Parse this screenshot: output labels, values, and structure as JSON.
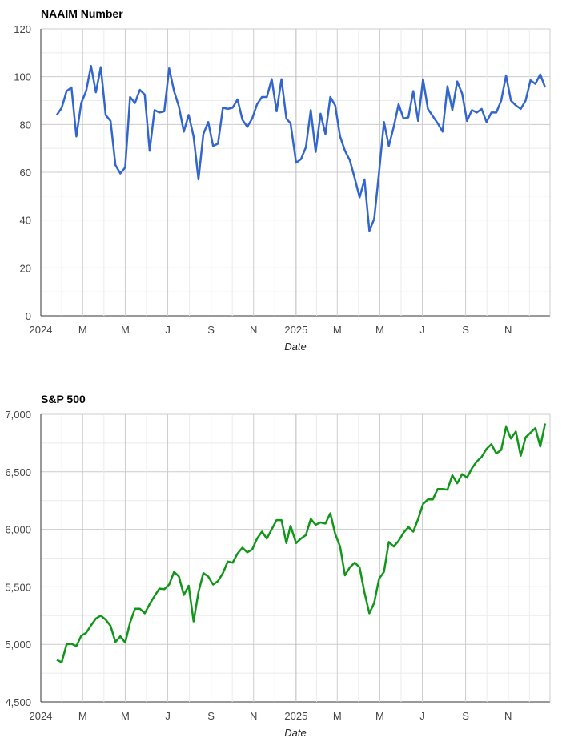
{
  "chart_data": [
    {
      "type": "line",
      "title": "NAAIM Number",
      "xlabel": "Date",
      "ylabel": "",
      "ylim": [
        0,
        120
      ],
      "yticks": [
        0,
        20,
        40,
        60,
        80,
        100,
        120
      ],
      "xlim": [
        "2024-01-01",
        "2025-12-31"
      ],
      "xticks": [
        {
          "label": "2024",
          "date": "2024-01-01"
        },
        {
          "label": "M",
          "date": "2024-03-01"
        },
        {
          "label": "M",
          "date": "2024-05-01"
        },
        {
          "label": "J",
          "date": "2024-07-01"
        },
        {
          "label": "S",
          "date": "2024-09-01"
        },
        {
          "label": "N",
          "date": "2024-11-01"
        },
        {
          "label": "2025",
          "date": "2025-01-01"
        },
        {
          "label": "M",
          "date": "2025-03-01"
        },
        {
          "label": "M",
          "date": "2025-05-01"
        },
        {
          "label": "J",
          "date": "2025-07-01"
        },
        {
          "label": "S",
          "date": "2025-09-01"
        },
        {
          "label": "N",
          "date": "2025-11-01"
        }
      ],
      "grid": true,
      "color": "#3366cc",
      "series": [
        {
          "x": [
            "2024-01-24",
            "2024-01-31",
            "2024-02-07",
            "2024-02-14",
            "2024-02-21",
            "2024-02-28",
            "2024-03-06",
            "2024-03-13",
            "2024-03-20",
            "2024-03-27",
            "2024-04-03",
            "2024-04-10",
            "2024-04-17",
            "2024-04-24",
            "2024-05-01",
            "2024-05-08",
            "2024-05-15",
            "2024-05-22",
            "2024-05-29",
            "2024-06-05",
            "2024-06-12",
            "2024-06-19",
            "2024-06-26",
            "2024-07-03",
            "2024-07-10",
            "2024-07-17",
            "2024-07-24",
            "2024-07-31",
            "2024-08-07",
            "2024-08-14",
            "2024-08-21",
            "2024-08-28",
            "2024-09-04",
            "2024-09-11",
            "2024-09-18",
            "2024-09-25",
            "2024-10-02",
            "2024-10-09",
            "2024-10-16",
            "2024-10-23",
            "2024-10-30",
            "2024-11-06",
            "2024-11-13",
            "2024-11-20",
            "2024-11-27",
            "2024-12-04",
            "2024-12-11",
            "2024-12-18",
            "2024-12-24",
            "2025-01-01",
            "2025-01-08",
            "2025-01-15",
            "2025-01-22",
            "2025-01-29",
            "2025-02-05",
            "2025-02-12",
            "2025-02-19",
            "2025-02-26",
            "2025-03-05",
            "2025-03-12",
            "2025-03-19",
            "2025-03-26",
            "2025-04-02",
            "2025-04-09",
            "2025-04-16",
            "2025-04-23",
            "2025-04-30",
            "2025-05-07",
            "2025-05-14",
            "2025-05-21",
            "2025-05-28",
            "2025-06-04",
            "2025-06-11",
            "2025-06-18",
            "2025-06-25",
            "2025-07-02",
            "2025-07-09",
            "2025-07-16",
            "2025-07-23",
            "2025-07-30",
            "2025-08-06",
            "2025-08-13",
            "2025-08-20",
            "2025-08-27",
            "2025-09-03",
            "2025-09-10",
            "2025-09-17",
            "2025-09-24",
            "2025-10-01",
            "2025-10-08",
            "2025-10-15",
            "2025-10-22",
            "2025-10-29",
            "2025-11-05",
            "2025-11-12",
            "2025-11-19",
            "2025-11-26",
            "2025-12-03",
            "2025-12-10",
            "2025-12-17",
            "2025-12-24"
          ],
          "y": [
            84,
            87,
            94,
            95.5,
            75,
            89,
            94,
            104.5,
            93.5,
            104,
            84,
            81.5,
            63,
            59.5,
            62,
            91.5,
            89,
            94.5,
            92.5,
            69,
            86,
            85,
            85.5,
            103.5,
            94,
            87.5,
            77,
            84,
            75,
            57,
            76,
            81,
            71,
            72,
            87,
            86.5,
            87,
            90.5,
            82,
            79,
            82.5,
            88.5,
            91.5,
            91.5,
            99,
            85.5,
            99,
            82.5,
            80.5,
            64,
            65.5,
            70.5,
            86,
            68.5,
            84.5,
            76,
            91.5,
            88,
            75,
            69,
            65,
            57.5,
            49.5,
            57,
            35.5,
            40.5,
            60,
            81,
            71,
            79,
            88.5,
            82.5,
            83,
            94,
            81.5,
            99,
            86.5,
            83.5,
            80.5,
            77,
            96,
            86,
            98,
            93,
            81.5,
            86,
            85,
            86.5,
            81,
            85,
            85,
            90,
            100.5,
            90,
            88,
            86.5,
            90,
            98.5,
            97,
            101,
            95.5
          ]
        }
      ]
    },
    {
      "type": "line",
      "title": "S&P 500",
      "xlabel": "Date",
      "ylabel": "",
      "ylim": [
        4500,
        7000
      ],
      "yticks": [
        4500,
        5000,
        5500,
        6000,
        6500,
        7000
      ],
      "ytick_labels": [
        "4,500",
        "5,000",
        "5,500",
        "6,000",
        "6,500",
        "7,000"
      ],
      "xlim": [
        "2024-01-01",
        "2025-12-31"
      ],
      "xticks": [
        {
          "label": "2024",
          "date": "2024-01-01"
        },
        {
          "label": "M",
          "date": "2024-03-01"
        },
        {
          "label": "M",
          "date": "2024-05-01"
        },
        {
          "label": "J",
          "date": "2024-07-01"
        },
        {
          "label": "S",
          "date": "2024-09-01"
        },
        {
          "label": "N",
          "date": "2024-11-01"
        },
        {
          "label": "2025",
          "date": "2025-01-01"
        },
        {
          "label": "M",
          "date": "2025-03-01"
        },
        {
          "label": "M",
          "date": "2025-05-01"
        },
        {
          "label": "J",
          "date": "2025-07-01"
        },
        {
          "label": "S",
          "date": "2025-09-01"
        },
        {
          "label": "N",
          "date": "2025-11-01"
        }
      ],
      "grid": true,
      "color": "#109618",
      "series": [
        {
          "x": [
            "2024-01-24",
            "2024-01-31",
            "2024-02-07",
            "2024-02-14",
            "2024-02-21",
            "2024-02-28",
            "2024-03-06",
            "2024-03-13",
            "2024-03-20",
            "2024-03-27",
            "2024-04-03",
            "2024-04-10",
            "2024-04-17",
            "2024-04-24",
            "2024-05-01",
            "2024-05-08",
            "2024-05-15",
            "2024-05-22",
            "2024-05-29",
            "2024-06-05",
            "2024-06-12",
            "2024-06-19",
            "2024-06-26",
            "2024-07-03",
            "2024-07-10",
            "2024-07-17",
            "2024-07-24",
            "2024-07-31",
            "2024-08-07",
            "2024-08-14",
            "2024-08-21",
            "2024-08-28",
            "2024-09-04",
            "2024-09-11",
            "2024-09-18",
            "2024-09-25",
            "2024-10-02",
            "2024-10-09",
            "2024-10-16",
            "2024-10-23",
            "2024-10-30",
            "2024-11-06",
            "2024-11-13",
            "2024-11-20",
            "2024-11-27",
            "2024-12-04",
            "2024-12-11",
            "2024-12-18",
            "2024-12-24",
            "2025-01-01",
            "2025-01-08",
            "2025-01-15",
            "2025-01-22",
            "2025-01-29",
            "2025-02-05",
            "2025-02-12",
            "2025-02-19",
            "2025-02-26",
            "2025-03-05",
            "2025-03-12",
            "2025-03-19",
            "2025-03-26",
            "2025-04-02",
            "2025-04-09",
            "2025-04-16",
            "2025-04-23",
            "2025-04-30",
            "2025-05-07",
            "2025-05-14",
            "2025-05-21",
            "2025-05-28",
            "2025-06-04",
            "2025-06-11",
            "2025-06-18",
            "2025-06-25",
            "2025-07-02",
            "2025-07-09",
            "2025-07-16",
            "2025-07-23",
            "2025-07-30",
            "2025-08-06",
            "2025-08-13",
            "2025-08-20",
            "2025-08-27",
            "2025-09-03",
            "2025-09-10",
            "2025-09-17",
            "2025-09-24",
            "2025-10-01",
            "2025-10-08",
            "2025-10-15",
            "2025-10-22",
            "2025-10-29",
            "2025-11-05",
            "2025-11-12",
            "2025-11-19",
            "2025-11-26",
            "2025-12-03",
            "2025-12-10",
            "2025-12-17",
            "2025-12-24"
          ],
          "y": [
            4865,
            4845,
            5000,
            5005,
            4985,
            5075,
            5100,
            5165,
            5225,
            5250,
            5215,
            5160,
            5020,
            5070,
            5015,
            5190,
            5310,
            5310,
            5270,
            5350,
            5420,
            5485,
            5480,
            5520,
            5630,
            5590,
            5430,
            5510,
            5200,
            5455,
            5620,
            5590,
            5520,
            5550,
            5620,
            5720,
            5710,
            5790,
            5840,
            5800,
            5825,
            5920,
            5980,
            5920,
            6000,
            6080,
            6080,
            5880,
            6030,
            5880,
            5920,
            5950,
            6090,
            6040,
            6060,
            6050,
            6140,
            5960,
            5850,
            5600,
            5670,
            5710,
            5670,
            5450,
            5270,
            5360,
            5570,
            5630,
            5890,
            5850,
            5900,
            5970,
            6020,
            5980,
            6090,
            6220,
            6260,
            6260,
            6350,
            6350,
            6345,
            6470,
            6400,
            6480,
            6450,
            6530,
            6590,
            6630,
            6700,
            6740,
            6660,
            6690,
            6890,
            6790,
            6850,
            6640,
            6800,
            6840,
            6880,
            6720,
            6920
          ]
        }
      ]
    }
  ]
}
